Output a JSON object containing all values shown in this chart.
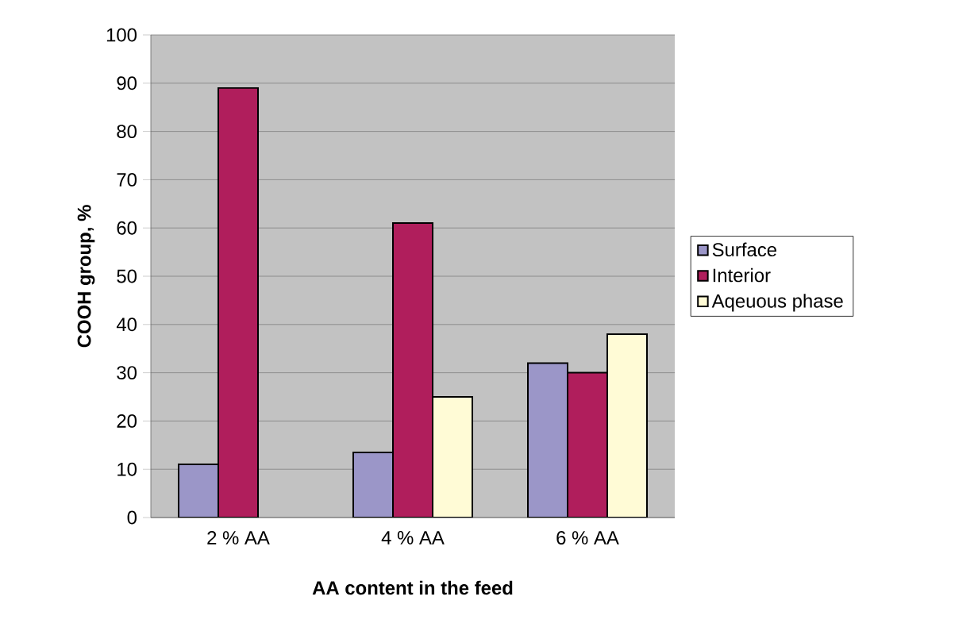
{
  "chart_data": {
    "type": "bar",
    "xlabel": "AA content in the feed",
    "ylabel": "COOH group, %",
    "categories": [
      "2 % AA",
      "4 % AA",
      "6 % AA"
    ],
    "series": [
      {
        "name": "Surface",
        "color": "#9b96c8",
        "values": [
          11,
          13.5,
          32
        ]
      },
      {
        "name": "Interior",
        "color": "#b01e5c",
        "values": [
          89,
          61,
          30
        ]
      },
      {
        "name": "Aqeuous phase",
        "color": "#fffbd6",
        "values": [
          null,
          25,
          38
        ]
      }
    ],
    "ylim": [
      0,
      100
    ],
    "yticks": [
      0,
      10,
      20,
      30,
      40,
      50,
      60,
      70,
      80,
      90,
      100
    ],
    "grid": "y",
    "legend": "right"
  }
}
